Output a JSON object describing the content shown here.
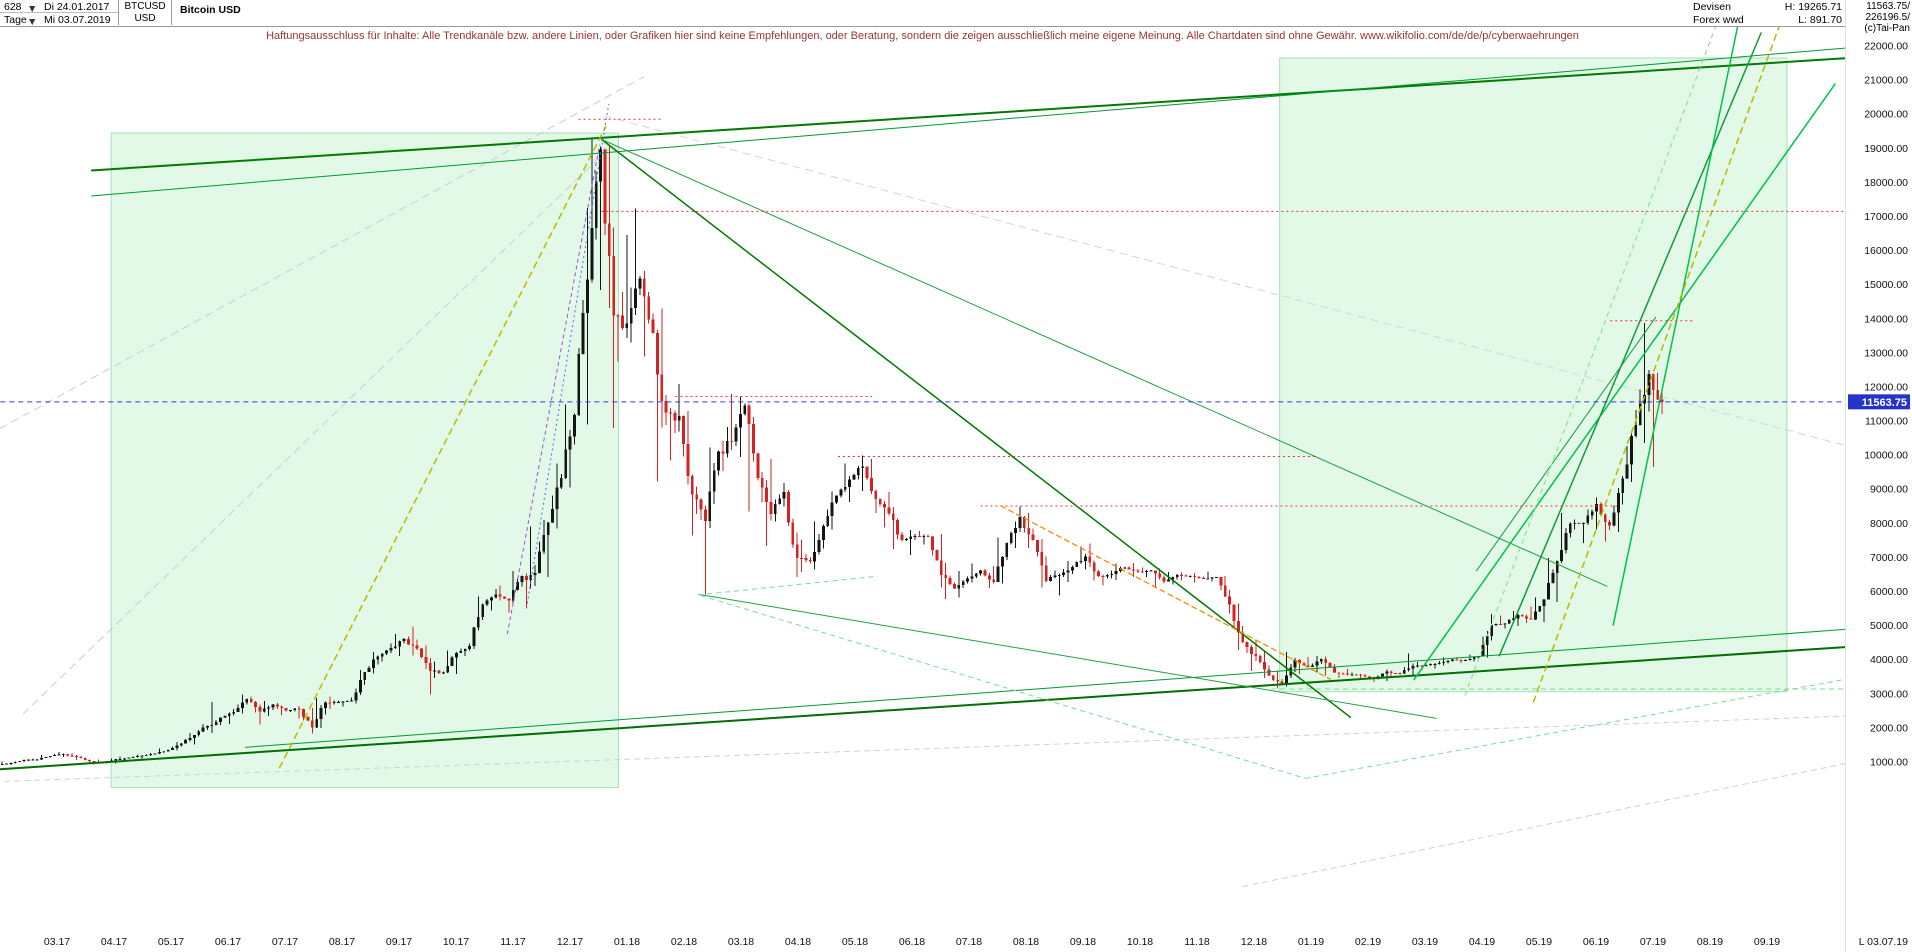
{
  "header": {
    "bars_count": "628",
    "start_date": "Di 24.01.2017",
    "period_label": "Tage",
    "end_date": "Mi 03.07.2019",
    "symbol": "BTCUSD",
    "currency": "USD",
    "title": "Bitcoin USD",
    "category": "Devisen",
    "subcategory": "Forex wwd",
    "high_label": "H: 19265.71",
    "low_label": "L: 891.70",
    "last_price": "11563.75/",
    "volume": "226196.5/",
    "copyright": "(c)Tai-Pan"
  },
  "ui": {
    "dropdown_arrow": "▼"
  },
  "disclaimer": "Haftungsausschluss für Inhalte: Alle Trendkanäle bzw. andere Linien, oder Grafiken hier sind keine Empfehlungen, oder Beratung, sondern die zeigen ausschließlich meine eigene Meinung. Alle Chartdaten sind ohne Gewähr. www.wikifolio.com/de/de/p/cyberwaehrungen",
  "axes": {
    "price_ticks": [
      22000,
      21000,
      20000,
      19000,
      18000,
      17000,
      16000,
      15000,
      14000,
      13000,
      12000,
      11000,
      10000,
      9000,
      8000,
      7000,
      6000,
      5000,
      4000,
      3000,
      2000,
      1000
    ],
    "time_ticks": [
      [
        2,
        "03.17"
      ],
      [
        3,
        "04.17"
      ],
      [
        4,
        "05.17"
      ],
      [
        5,
        "06.17"
      ],
      [
        6,
        "07.17"
      ],
      [
        7,
        "08.17"
      ],
      [
        8,
        "09.17"
      ],
      [
        9,
        "10.17"
      ],
      [
        10,
        "11.17"
      ],
      [
        11,
        "12.17"
      ],
      [
        12,
        "01.18"
      ],
      [
        13,
        "02.18"
      ],
      [
        14,
        "03.18"
      ],
      [
        15,
        "04.18"
      ],
      [
        16,
        "05.18"
      ],
      [
        17,
        "06.18"
      ],
      [
        18,
        "07.18"
      ],
      [
        19,
        "08.18"
      ],
      [
        20,
        "09.18"
      ],
      [
        21,
        "10.18"
      ],
      [
        22,
        "11.18"
      ],
      [
        23,
        "12.18"
      ],
      [
        24,
        "01.19"
      ],
      [
        25,
        "02.19"
      ],
      [
        26,
        "03.19"
      ],
      [
        27,
        "04.19"
      ],
      [
        28,
        "05.19"
      ],
      [
        29,
        "06.19"
      ],
      [
        30,
        "07.19"
      ],
      [
        31,
        "08.19"
      ],
      [
        32,
        "09.19"
      ]
    ],
    "last_tick": "L 03.07.19",
    "badge_color": "#2433c8"
  },
  "chart_data": {
    "type": "candlestick",
    "title": "Bitcoin USD",
    "instrument": "BTCUSD (Devisen / Forex wwd)",
    "timeframe": "Tage (daily), 628 bars, 24.01.2017 - 03.07.2019",
    "high": 19265.71,
    "low": 891.7,
    "last": 11563.75,
    "price_axis_range": [
      1000,
      22000
    ],
    "x_unit": "months since 2017-01-01 (Jan=0)",
    "x_start": 0.77,
    "x_step": 0.2299,
    "colors": {
      "up": "#141414",
      "down": "#d22222"
    },
    "weekly_ohlc": [
      [
        905,
        940,
        891.7,
        921
      ],
      [
        921,
        1010,
        915,
        975
      ],
      [
        975,
        1070,
        960,
        1052
      ],
      [
        1052,
        1105,
        1025,
        1080
      ],
      [
        1080,
        1200,
        1065,
        1178
      ],
      [
        1178,
        1292,
        1150,
        1235
      ],
      [
        1235,
        1260,
        1060,
        1150
      ],
      [
        1150,
        1170,
        945,
        1025
      ],
      [
        1025,
        1070,
        930,
        966
      ],
      [
        966,
        1105,
        950,
        1085
      ],
      [
        1085,
        1160,
        1060,
        1125
      ],
      [
        1125,
        1215,
        1100,
        1190
      ],
      [
        1190,
        1270,
        1170,
        1248
      ],
      [
        1248,
        1390,
        1230,
        1352
      ],
      [
        1352,
        1580,
        1340,
        1540
      ],
      [
        1540,
        1845,
        1520,
        1790
      ],
      [
        1790,
        2110,
        1750,
        2060
      ],
      [
        2060,
        2760,
        1850,
        2310
      ],
      [
        2310,
        2550,
        2110,
        2470
      ],
      [
        2470,
        2980,
        2420,
        2850
      ],
      [
        2850,
        2920,
        2100,
        2480
      ],
      [
        2480,
        2790,
        2350,
        2680
      ],
      [
        2680,
        2730,
        2380,
        2510
      ],
      [
        2510,
        2640,
        2280,
        2560
      ],
      [
        2560,
        2580,
        1830,
        2010
      ],
      [
        2010,
        2880,
        1990,
        2750
      ],
      [
        2750,
        2920,
        2550,
        2760
      ],
      [
        2760,
        2890,
        2630,
        2810
      ],
      [
        2810,
        3700,
        2720,
        3640
      ],
      [
        3640,
        4220,
        3600,
        4090
      ],
      [
        4090,
        4480,
        3950,
        4340
      ],
      [
        4340,
        4750,
        4110,
        4610
      ],
      [
        4610,
        4980,
        4120,
        4330
      ],
      [
        4330,
        4420,
        2980,
        3670
      ],
      [
        3670,
        3950,
        3460,
        3620
      ],
      [
        3620,
        4270,
        3580,
        4200
      ],
      [
        4200,
        4470,
        4110,
        4400
      ],
      [
        4400,
        5850,
        4320,
        5620
      ],
      [
        5620,
        6080,
        5450,
        5920
      ],
      [
        5920,
        6180,
        5380,
        5740
      ],
      [
        5740,
        6600,
        5650,
        6460
      ],
      [
        6460,
        7900,
        5500,
        6550
      ],
      [
        6550,
        8100,
        6420,
        8030
      ],
      [
        8030,
        9750,
        7850,
        9330
      ],
      [
        9330,
        11480,
        9050,
        11180
      ],
      [
        11180,
        17250,
        10900,
        15150
      ],
      [
        15150,
        19265.71,
        14850,
        18960
      ],
      [
        18960,
        19100,
        10800,
        14100
      ],
      [
        14100,
        16450,
        12750,
        13860
      ],
      [
        13860,
        17234,
        13300,
        15180
      ],
      [
        15180,
        15400,
        12900,
        13580
      ],
      [
        13580,
        14300,
        9222,
        11250
      ],
      [
        11250,
        12080,
        9850,
        11150
      ],
      [
        11150,
        11290,
        7650,
        8850
      ],
      [
        8850,
        9080,
        5920,
        8070
      ],
      [
        8070,
        10230,
        7860,
        10100
      ],
      [
        10100,
        11790,
        9540,
        10400
      ],
      [
        10400,
        11710,
        9950,
        11450
      ],
      [
        11450,
        11510,
        8344,
        9330
      ],
      [
        9330,
        9890,
        7335,
        8270
      ],
      [
        8270,
        9180,
        8050,
        8920
      ],
      [
        8920,
        8980,
        6425,
        6980
      ],
      [
        6980,
        7520,
        6570,
        6880
      ],
      [
        6880,
        8060,
        6650,
        7920
      ],
      [
        7920,
        8940,
        7820,
        8810
      ],
      [
        8810,
        9760,
        8620,
        9290
      ],
      [
        9290,
        9990,
        8950,
        9660
      ],
      [
        9660,
        9880,
        8310,
        8710
      ],
      [
        8710,
        8920,
        7880,
        8290
      ],
      [
        8290,
        8480,
        7240,
        7510
      ],
      [
        7510,
        7800,
        7070,
        7630
      ],
      [
        7630,
        7780,
        7380,
        7610
      ],
      [
        7610,
        7690,
        6120,
        6480
      ],
      [
        6480,
        6840,
        5780,
        6090
      ],
      [
        6090,
        6600,
        5830,
        6380
      ],
      [
        6380,
        6820,
        6270,
        6610
      ],
      [
        6610,
        6750,
        6100,
        6280
      ],
      [
        6280,
        7590,
        6240,
        7420
      ],
      [
        7420,
        8500,
        7280,
        8180
      ],
      [
        8180,
        8310,
        7280,
        7510
      ],
      [
        7510,
        7540,
        6120,
        6310
      ],
      [
        6310,
        6620,
        5880,
        6490
      ],
      [
        6490,
        6900,
        6280,
        6720
      ],
      [
        6720,
        7320,
        6640,
        7020
      ],
      [
        7020,
        7410,
        6320,
        6450
      ],
      [
        6450,
        6610,
        6180,
        6520
      ],
      [
        6520,
        6820,
        6340,
        6710
      ],
      [
        6710,
        6830,
        6420,
        6590
      ],
      [
        6590,
        6700,
        6430,
        6610
      ],
      [
        6610,
        6670,
        6100,
        6300
      ],
      [
        6300,
        6570,
        6210,
        6490
      ],
      [
        6490,
        6560,
        6330,
        6450
      ],
      [
        6450,
        6540,
        6260,
        6380
      ],
      [
        6380,
        6580,
        6290,
        6420
      ],
      [
        6420,
        6460,
        5360,
        5620
      ],
      [
        5620,
        5650,
        4280,
        4520
      ],
      [
        4520,
        4590,
        3670,
        4110
      ],
      [
        4110,
        4260,
        3460,
        3530
      ],
      [
        3530,
        3680,
        3156,
        3260
      ],
      [
        3260,
        4230,
        3210,
        3990
      ],
      [
        3990,
        4080,
        3580,
        3780
      ],
      [
        3780,
        4110,
        3630,
        4020
      ],
      [
        4020,
        4090,
        3530,
        3620
      ],
      [
        3620,
        3730,
        3470,
        3560
      ],
      [
        3560,
        3620,
        3420,
        3540
      ],
      [
        3540,
        3580,
        3350,
        3440
      ],
      [
        3440,
        3710,
        3370,
        3650
      ],
      [
        3650,
        3680,
        3480,
        3590
      ],
      [
        3590,
        4180,
        3550,
        3810
      ],
      [
        3810,
        3930,
        3700,
        3850
      ],
      [
        3850,
        3960,
        3740,
        3900
      ],
      [
        3900,
        4060,
        3830,
        4010
      ],
      [
        4010,
        4080,
        3910,
        3990
      ],
      [
        3990,
        4160,
        3950,
        4100
      ],
      [
        4100,
        5340,
        4070,
        5020
      ],
      [
        5020,
        5290,
        4920,
        5060
      ],
      [
        5060,
        5430,
        4990,
        5310
      ],
      [
        5310,
        5560,
        5080,
        5180
      ],
      [
        5180,
        5830,
        5110,
        5770
      ],
      [
        5770,
        6980,
        5700,
        6900
      ],
      [
        6900,
        8310,
        6830,
        7990
      ],
      [
        7990,
        8110,
        7430,
        8010
      ],
      [
        8010,
        8760,
        7820,
        8560
      ],
      [
        8560,
        8620,
        7460,
        7930
      ],
      [
        7930,
        9390,
        7750,
        9320
      ],
      [
        9320,
        11330,
        9210,
        10880
      ],
      [
        10880,
        13880,
        10350,
        12380
      ],
      [
        12380,
        12410,
        9650,
        11563.75
      ]
    ],
    "box_style": {
      "fill": "rgba(160,235,175,0.30)",
      "stroke": "rgba(90,200,120,0.50)"
    },
    "boxes": [
      {
        "name": "highlight-zone-2017",
        "t1": 2.95,
        "p1": 19450,
        "t2": 11.85,
        "p2": 250
      },
      {
        "name": "highlight-zone-2019",
        "t1": 23.45,
        "p1": 21650,
        "t2": 32.35,
        "p2": 3060
      }
    ],
    "lines_format": "[name, color, width, dasharray|null, t1, price1, t2, price2]",
    "lines": [
      [
        "long-term-resistance-upper",
        "#007a00",
        2,
        null,
        2.6,
        18350,
        33.45,
        21650
      ],
      [
        "long-term-resistance-lower",
        "#009933",
        1,
        null,
        2.6,
        17600,
        33.45,
        21950
      ],
      [
        "long-term-support-main",
        "#006e00",
        2,
        null,
        0.2,
        700,
        33.45,
        4380
      ],
      [
        "long-term-support-secondary",
        "#009933",
        1,
        null,
        5.3,
        1430,
        33.45,
        4900
      ],
      [
        "bear-2018-resistance-from-peak",
        "#007a00",
        1.5,
        null,
        11.55,
        19265,
        24.7,
        2300
      ],
      [
        "descending-from-peak-shallow",
        "#22a044",
        1,
        null,
        11.55,
        19265,
        29.2,
        6150
      ],
      [
        "descending-lows-2018",
        "#22a044",
        1,
        null,
        13.25,
        5920,
        26.2,
        2280
      ],
      [
        "rally-2019-support",
        "#00c24a",
        1.5,
        null,
        25.8,
        3400,
        33.2,
        20900
      ],
      [
        "rally-2019-steep",
        "#129a3a",
        1.5,
        null,
        27.3,
        4100,
        31.9,
        22400
      ],
      [
        "rally-2019-steepest",
        "#00c24a",
        1.5,
        null,
        29.3,
        5000,
        31.6,
        23500
      ],
      [
        "rally-2019-channel-upper",
        "#129a3a",
        1,
        null,
        26.9,
        6600,
        30.05,
        14050
      ],
      [
        "parabolic-2017-trend",
        "#b9b900",
        1.5,
        "7,4",
        5.9,
        820,
        11.63,
        19650
      ],
      [
        "steep-2019-trend-yellow",
        "#b9b900",
        1.5,
        "7,4",
        27.9,
        2750,
        32.35,
        23200
      ],
      [
        "resistance-17000",
        "#ee3333",
        1,
        "2,3",
        11.55,
        17150,
        33.45,
        17150
      ],
      [
        "resistance-11700",
        "#ee3333",
        1,
        "2,3",
        12.85,
        11720,
        16.3,
        11720
      ],
      [
        "resistance-9950",
        "#ee3333",
        1,
        "2,3",
        15.7,
        9960,
        24.1,
        9960
      ],
      [
        "resistance-8500",
        "#ee3333",
        1,
        "2,3",
        18.2,
        8510,
        29.4,
        8510
      ],
      [
        "peak-level-19850",
        "#ee3333",
        1,
        "2,3",
        11.15,
        19850,
        12.6,
        19850
      ],
      [
        "spike-level-13940",
        "#ee3333",
        1,
        "2,3",
        29.25,
        13940,
        30.7,
        13940
      ],
      [
        "last-price-line",
        "#2f3fd0",
        1,
        "5,4",
        -0.1,
        11563.75,
        33.45,
        11563.75
      ],
      [
        "descending-2018-orange",
        "#ff8800",
        1.3,
        "6,3",
        18.55,
        8520,
        24.35,
        3420
      ],
      [
        "old-channel-grey-1",
        "#cccccc",
        1,
        "8,5",
        0.8,
        10600,
        12.3,
        21100
      ],
      [
        "old-channel-grey-2",
        "#cccccc",
        1,
        "8,5",
        1.4,
        2400,
        11.75,
        19100
      ],
      [
        "old-descending-grey",
        "#d4d4d4",
        1,
        "8,5",
        11.6,
        19950,
        33.45,
        10250
      ],
      [
        "old-support-grey",
        "#d0d0d0",
        1,
        "6,4",
        0.2,
        380,
        33.45,
        2350
      ],
      [
        "corner-grey",
        "#d0d0d0",
        1,
        "6,4",
        22.8,
        -2650,
        33.45,
        980
      ],
      [
        "support-zone-3150",
        "#79dd90",
        1,
        "5,4",
        23.3,
        3140,
        33.45,
        3140
      ],
      [
        "fan-down-lightgreen",
        "#79dd90",
        1,
        "5,4",
        13.3,
        5880,
        23.9,
        520
      ],
      [
        "fan-up-lightgreen",
        "#79dd90",
        1,
        "5,4",
        23.9,
        520,
        33.45,
        3450
      ],
      [
        "steep-2019-lightgreen",
        "#7ee07e",
        1,
        "5,4",
        26.7,
        2950,
        31.15,
        22800
      ],
      [
        "parabolic-2017-blue-dotted",
        "#5566ee",
        1,
        "2,3",
        10.25,
        5650,
        11.68,
        20300
      ],
      [
        "parabolic-2017-purple",
        "#9955cc",
        1,
        "4,3",
        9.9,
        4750,
        11.52,
        19100
      ],
      [
        "minor-rising-2018",
        "#79dd90",
        1,
        "5,4",
        13.25,
        5900,
        16.4,
        6450
      ]
    ]
  }
}
